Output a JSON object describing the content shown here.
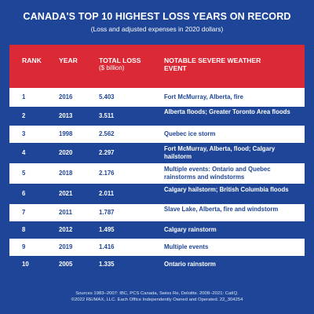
{
  "header": {
    "title": "CANADA'S TOP 10 HIGHEST LOSS YEARS ON RECORD",
    "subtitle": "(Loss and adjusted expenses in 2020 dollars)"
  },
  "table": {
    "columns": {
      "rank": "RANK",
      "year": "YEAR",
      "loss": "TOTAL LOSS",
      "loss_unit": "($ billion)",
      "event_line1": "NOTABLE SEVERE WEATHER",
      "event_line2": "EVENT"
    },
    "rows": [
      {
        "rank": "1",
        "year": "2016",
        "loss": "5.403",
        "event": "Fort McMurray, Alberta, fire"
      },
      {
        "rank": "2",
        "year": "2013",
        "loss": "3.511",
        "event": "Alberta floods; Greater Toronto Area floods"
      },
      {
        "rank": "3",
        "year": "1998",
        "loss": "2.562",
        "event": "Quebec ice storm"
      },
      {
        "rank": "4",
        "year": "2020",
        "loss": "2.297",
        "event": "Fort McMurray, Alberta, flood; Calgary hailstorm"
      },
      {
        "rank": "5",
        "year": "2018",
        "loss": "2.176",
        "event": "Multiple events: Ontario and Quebec rainstorms and windstorms"
      },
      {
        "rank": "6",
        "year": "2021",
        "loss": "2.011",
        "event": "Calgary hailstorm; British Columbia floods"
      },
      {
        "rank": "7",
        "year": "2011",
        "loss": "1.787",
        "event": "Slave Lake, Alberta, fire and windstorm"
      },
      {
        "rank": "8",
        "year": "2012",
        "loss": "1.495",
        "event": "Calgary rainstorm"
      },
      {
        "rank": "9",
        "year": "2019",
        "loss": "1.416",
        "event": "Multiple events"
      },
      {
        "rank": "10",
        "year": "2005",
        "loss": "1.335",
        "event": "Ontario rainstorm"
      }
    ]
  },
  "footer": {
    "line1": "Sources 1983–2007: IBC, PCS Canada, Swiss Re, Deloitte. 2008–2021: CatIQ.",
    "line2": "©2022 RE/MAX, LLC. Each Office Independently Owned and Operated. 22_304254"
  },
  "colors": {
    "background": "#1e4597",
    "header_band": "#db2936",
    "row_light": "#ffffff"
  }
}
